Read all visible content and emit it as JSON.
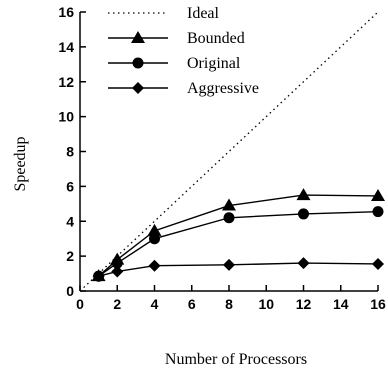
{
  "chart_data": {
    "type": "line",
    "title": "",
    "xlabel": "Number of Processors",
    "ylabel": "Speedup",
    "xlim": [
      0,
      16
    ],
    "ylim": [
      0,
      16
    ],
    "xticks": [
      0,
      2,
      4,
      6,
      8,
      10,
      12,
      14,
      16
    ],
    "yticks": [
      0,
      2,
      4,
      6,
      8,
      10,
      12,
      14,
      16
    ],
    "x": [
      1,
      2,
      4,
      8,
      12,
      16
    ],
    "grid": false,
    "legend_position": "top-left",
    "series": [
      {
        "name": "Ideal",
        "style": "dotted",
        "marker": "none",
        "x": [
          0,
          16
        ],
        "values": [
          0,
          16
        ]
      },
      {
        "name": "Bounded",
        "style": "solid",
        "marker": "triangle",
        "values": [
          0.85,
          1.8,
          3.45,
          4.9,
          5.5,
          5.45
        ]
      },
      {
        "name": "Original",
        "style": "solid",
        "marker": "circle",
        "values": [
          0.85,
          1.6,
          3.0,
          4.2,
          4.42,
          4.55
        ]
      },
      {
        "name": "Aggressive",
        "style": "solid",
        "marker": "diamond",
        "values": [
          0.85,
          1.12,
          1.45,
          1.5,
          1.6,
          1.55
        ]
      }
    ]
  }
}
